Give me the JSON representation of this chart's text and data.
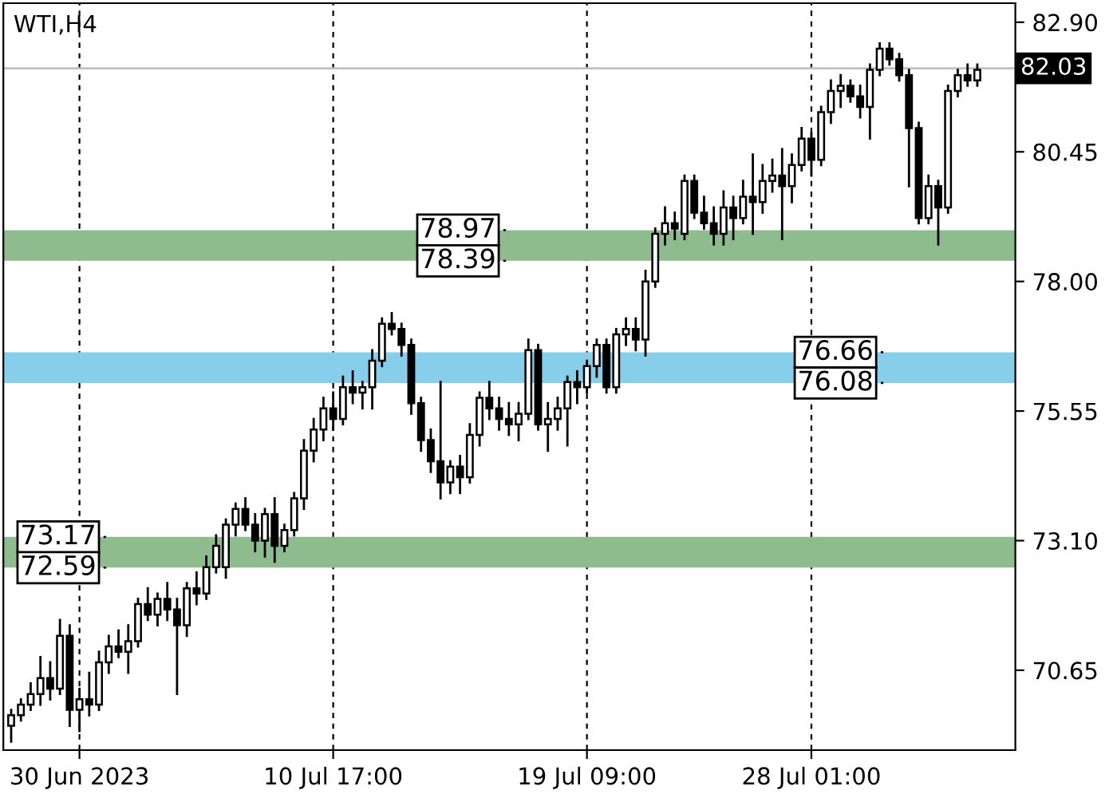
{
  "chart_data": {
    "type": "candlestick",
    "title": "WTI,H4",
    "categories": [
      null,
      null,
      null,
      null,
      null,
      null,
      null,
      "30 Jun 2023",
      null,
      null,
      null,
      null,
      null,
      null,
      null,
      null,
      null,
      null,
      null,
      null,
      null,
      null,
      null,
      null,
      null,
      null,
      null,
      null,
      null,
      null,
      null,
      null,
      null,
      "10 Jul 17:00",
      null,
      null,
      null,
      null,
      null,
      null,
      null,
      null,
      null,
      null,
      null,
      null,
      null,
      null,
      null,
      null,
      null,
      null,
      null,
      null,
      null,
      null,
      null,
      null,
      null,
      "19 Jul 09:00",
      null,
      null,
      null,
      null,
      null,
      null,
      null,
      null,
      null,
      null,
      null,
      null,
      null,
      null,
      null,
      null,
      null,
      null,
      null,
      null,
      null,
      null,
      "28 Jul 01:00",
      null,
      null,
      null,
      null,
      null,
      null,
      null,
      null,
      null,
      null,
      null,
      null,
      null,
      null,
      null,
      null,
      null
    ],
    "ohlc": [
      [
        69.6,
        69.9,
        69.3,
        69.8
      ],
      [
        69.8,
        70.1,
        69.7,
        70.0
      ],
      [
        70.0,
        70.4,
        69.9,
        70.2
      ],
      [
        70.2,
        70.9,
        70.0,
        70.5
      ],
      [
        70.5,
        70.8,
        70.1,
        70.3
      ],
      [
        70.3,
        71.6,
        70.2,
        71.3
      ],
      [
        71.3,
        71.5,
        69.6,
        69.9
      ],
      [
        69.9,
        70.3,
        69.5,
        70.1
      ],
      [
        70.1,
        70.6,
        69.8,
        70.0
      ],
      [
        70.0,
        71.0,
        69.9,
        70.8
      ],
      [
        70.8,
        71.3,
        70.6,
        71.1
      ],
      [
        71.1,
        71.4,
        70.9,
        71.0
      ],
      [
        71.0,
        71.5,
        70.6,
        71.2
      ],
      [
        71.2,
        72.0,
        71.1,
        71.9
      ],
      [
        71.9,
        72.2,
        71.6,
        71.7
      ],
      [
        71.7,
        72.1,
        71.5,
        72.0
      ],
      [
        72.0,
        72.3,
        71.6,
        71.8
      ],
      [
        71.8,
        72.0,
        70.2,
        71.5
      ],
      [
        71.5,
        72.3,
        71.3,
        72.2
      ],
      [
        72.2,
        72.5,
        71.9,
        72.1
      ],
      [
        72.1,
        72.8,
        72.0,
        72.6
      ],
      [
        72.6,
        73.2,
        72.5,
        73.0
      ],
      [
        72.6,
        73.5,
        72.4,
        73.4
      ],
      [
        73.4,
        73.8,
        73.2,
        73.7
      ],
      [
        73.7,
        73.9,
        73.3,
        73.4
      ],
      [
        73.4,
        73.6,
        72.9,
        73.1
      ],
      [
        73.1,
        73.7,
        72.8,
        73.6
      ],
      [
        73.6,
        73.9,
        72.7,
        73.0
      ],
      [
        73.0,
        73.4,
        72.9,
        73.3
      ],
      [
        73.3,
        74.0,
        73.2,
        73.9
      ],
      [
        73.9,
        75.0,
        73.7,
        74.8
      ],
      [
        74.8,
        75.4,
        74.6,
        75.2
      ],
      [
        75.2,
        75.8,
        75.0,
        75.6
      ],
      [
        75.6,
        75.9,
        75.2,
        75.4
      ],
      [
        75.4,
        76.2,
        75.3,
        76.0
      ],
      [
        76.0,
        76.3,
        75.7,
        75.9
      ],
      [
        75.9,
        76.1,
        75.6,
        76.0
      ],
      [
        76.0,
        76.7,
        75.6,
        76.5
      ],
      [
        76.5,
        77.3,
        76.4,
        77.2
      ],
      [
        77.2,
        77.4,
        77.0,
        77.1
      ],
      [
        77.1,
        77.2,
        76.6,
        76.8
      ],
      [
        76.8,
        76.9,
        75.5,
        75.7
      ],
      [
        75.7,
        75.8,
        74.8,
        75.0
      ],
      [
        75.0,
        75.2,
        74.4,
        74.6
      ],
      [
        74.6,
        76.1,
        73.9,
        74.2
      ],
      [
        74.2,
        74.6,
        74.0,
        74.5
      ],
      [
        74.5,
        74.7,
        74.0,
        74.3
      ],
      [
        74.3,
        75.3,
        74.2,
        75.1
      ],
      [
        75.1,
        75.9,
        74.9,
        75.8
      ],
      [
        75.8,
        76.1,
        75.4,
        75.6
      ],
      [
        75.6,
        75.8,
        75.2,
        75.4
      ],
      [
        75.4,
        75.7,
        75.1,
        75.3
      ],
      [
        75.3,
        75.7,
        75.0,
        75.5
      ],
      [
        75.5,
        76.9,
        75.4,
        76.7
      ],
      [
        76.7,
        76.8,
        75.2,
        75.3
      ],
      [
        75.3,
        75.7,
        74.8,
        75.4
      ],
      [
        75.4,
        75.8,
        75.2,
        75.6
      ],
      [
        75.6,
        76.2,
        74.9,
        76.1
      ],
      [
        76.1,
        76.3,
        75.7,
        76.0
      ],
      [
        76.0,
        76.5,
        75.9,
        76.4
      ],
      [
        76.4,
        76.9,
        76.2,
        76.8
      ],
      [
        76.8,
        76.9,
        75.9,
        76.0
      ],
      [
        76.0,
        77.1,
        75.9,
        77.0
      ],
      [
        77.0,
        77.3,
        76.8,
        77.1
      ],
      [
        77.1,
        77.3,
        76.7,
        76.9
      ],
      [
        76.9,
        78.2,
        76.6,
        78.0
      ],
      [
        78.0,
        79.0,
        77.9,
        78.9
      ],
      [
        78.9,
        79.4,
        78.7,
        79.1
      ],
      [
        79.1,
        79.3,
        78.8,
        79.0
      ],
      [
        78.9,
        80.0,
        78.8,
        79.9
      ],
      [
        79.9,
        80.0,
        79.2,
        79.3
      ],
      [
        79.3,
        79.6,
        79.0,
        79.1
      ],
      [
        79.1,
        79.4,
        78.7,
        78.9
      ],
      [
        78.9,
        79.7,
        78.7,
        79.4
      ],
      [
        79.4,
        79.6,
        78.8,
        79.2
      ],
      [
        79.2,
        79.9,
        79.1,
        79.6
      ],
      [
        79.6,
        80.4,
        78.9,
        79.5
      ],
      [
        79.5,
        80.2,
        79.3,
        79.9
      ],
      [
        79.9,
        80.3,
        79.7,
        80.0
      ],
      [
        80.0,
        80.5,
        78.8,
        79.8
      ],
      [
        79.8,
        80.4,
        79.5,
        80.2
      ],
      [
        80.2,
        80.9,
        80.1,
        80.7
      ],
      [
        80.7,
        80.8,
        80.0,
        80.3
      ],
      [
        80.3,
        81.3,
        80.2,
        81.2
      ],
      [
        81.2,
        81.8,
        81.0,
        81.6
      ],
      [
        81.6,
        81.9,
        81.3,
        81.7
      ],
      [
        81.7,
        81.8,
        81.4,
        81.5
      ],
      [
        81.5,
        81.7,
        81.1,
        81.3
      ],
      [
        81.3,
        82.1,
        80.7,
        82.0
      ],
      [
        82.0,
        82.5,
        81.9,
        82.4
      ],
      [
        82.4,
        82.5,
        82.1,
        82.2
      ],
      [
        82.2,
        82.3,
        81.8,
        81.9
      ],
      [
        81.9,
        82.0,
        79.8,
        80.9
      ],
      [
        80.9,
        81.0,
        79.1,
        79.2
      ],
      [
        79.2,
        80.0,
        79.1,
        79.8
      ],
      [
        79.8,
        79.9,
        78.7,
        79.4
      ],
      [
        79.4,
        81.7,
        79.3,
        81.6
      ],
      [
        81.6,
        82.0,
        81.5,
        81.9
      ],
      [
        81.9,
        82.1,
        81.7,
        81.8
      ],
      [
        81.8,
        82.1,
        81.7,
        82.0
      ]
    ],
    "ylim": [
      69.14,
      83.26
    ],
    "yticks": [
      {
        "value": 70.65,
        "label": "70.65"
      },
      {
        "value": 73.1,
        "label": "73.10"
      },
      {
        "value": 75.55,
        "label": "75.55"
      },
      {
        "value": 78.0,
        "label": "78.00"
      },
      {
        "value": 80.45,
        "label": "80.45"
      },
      {
        "value": 82.9,
        "label": "82.90"
      }
    ],
    "grid": "x",
    "ref_lines": [
      {
        "axis": "y",
        "value": 82.03,
        "label": "82.03",
        "color": "#c0c0c0"
      }
    ],
    "bands": [
      {
        "axis": "y",
        "from": 72.59,
        "to": 73.17,
        "color": "#8fbc8f"
      },
      {
        "axis": "y",
        "from": 78.39,
        "to": 78.97,
        "color": "#8fbc8f"
      },
      {
        "axis": "y",
        "from": 76.08,
        "to": 76.66,
        "color": "#87ceeb"
      }
    ],
    "annotations": [
      {
        "text": "73.17",
        "y": 73.17
      },
      {
        "text": "72.59",
        "y": 72.59
      },
      {
        "text": "78.97",
        "y": 78.97
      },
      {
        "text": "78.39",
        "y": 78.39
      },
      {
        "text": "76.66",
        "y": 76.66
      },
      {
        "text": "76.08",
        "y": 76.08
      }
    ]
  }
}
